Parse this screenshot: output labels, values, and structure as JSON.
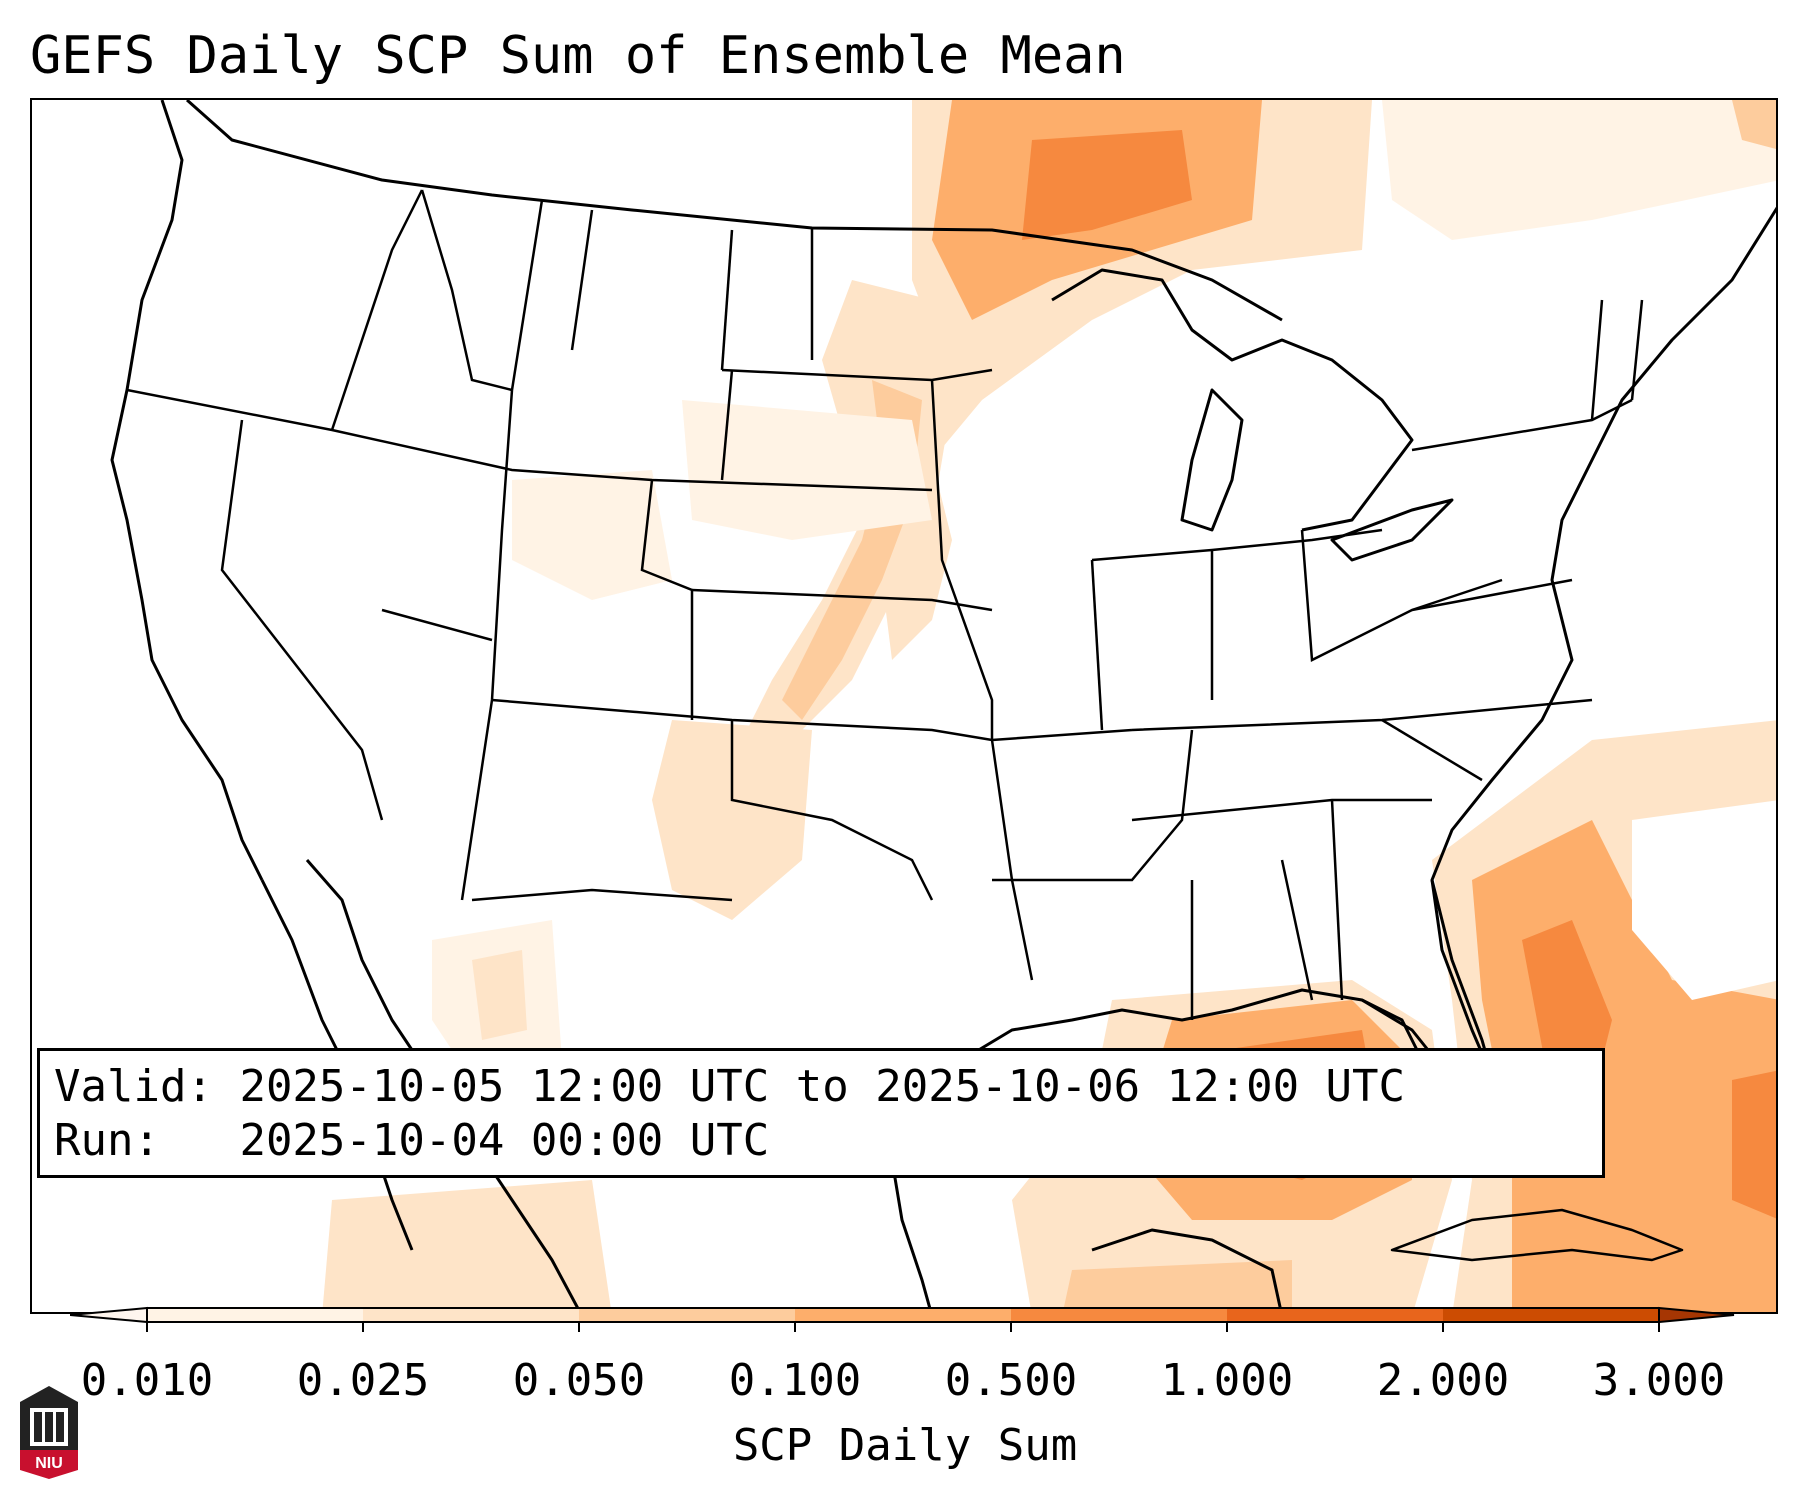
{
  "title": "GEFS Daily SCP Sum of Ensemble Mean",
  "info": {
    "valid_label": "Valid:",
    "valid_value": "2025-10-05 12:00 UTC to 2025-10-06 12:00 UTC",
    "run_label": "Run:",
    "run_value": "2025-10-04 00:00 UTC"
  },
  "colorbar": {
    "label": "SCP Daily Sum",
    "ticks": [
      "0.010",
      "0.025",
      "0.050",
      "0.100",
      "0.500",
      "1.000",
      "2.000",
      "3.000"
    ],
    "colors": [
      "#fff3e5",
      "#fee4c8",
      "#fdcc9d",
      "#fdae6b",
      "#f6893f",
      "#e8651c",
      "#cc4c02"
    ],
    "extend": "both"
  },
  "logo": {
    "text": "NIU",
    "icon": "university-seal-icon"
  },
  "map": {
    "region": "CONUS",
    "overlays": [
      "state-borders",
      "country-borders",
      "coastlines"
    ],
    "shading_field": "SCP daily sum"
  }
}
